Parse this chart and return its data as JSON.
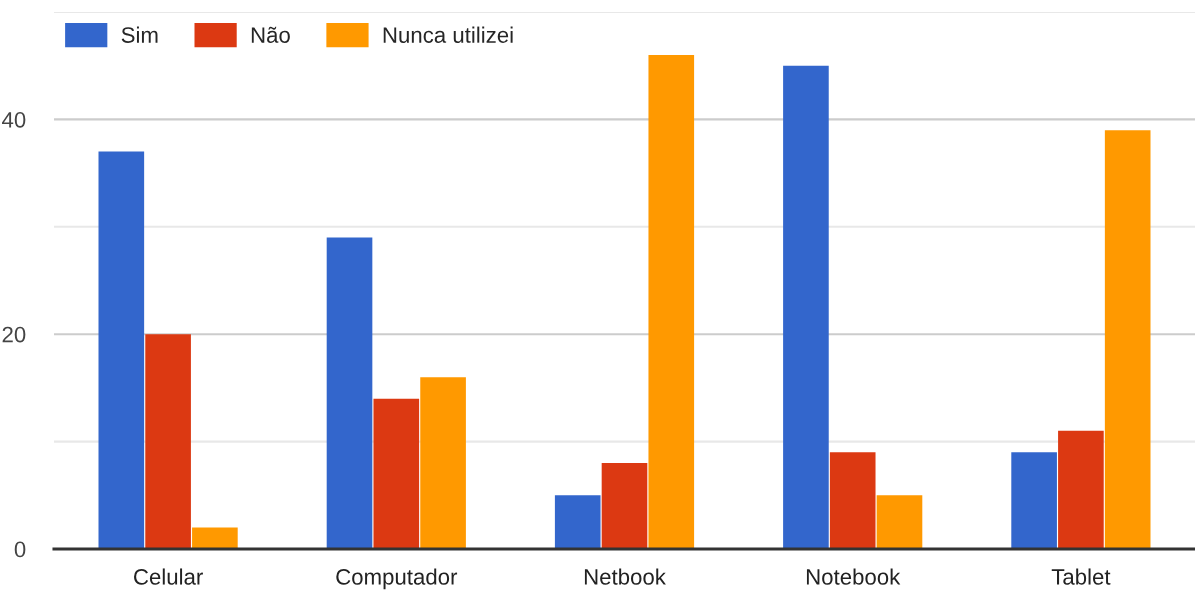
{
  "chart_data": {
    "type": "bar",
    "categories": [
      "Celular",
      "Computador",
      "Netbook",
      "Notebook",
      "Tablet"
    ],
    "series": [
      {
        "name": "Sim",
        "color": "#3366cc",
        "values": [
          37,
          29,
          5,
          45,
          9
        ]
      },
      {
        "name": "Não",
        "color": "#dc3912",
        "values": [
          20,
          14,
          8,
          9,
          11
        ]
      },
      {
        "name": "Nunca utilizei",
        "color": "#ff9900",
        "values": [
          2,
          16,
          46,
          5,
          39
        ]
      }
    ],
    "ylim": [
      0,
      50
    ],
    "yticks": [
      0,
      {
        "value": 10,
        "label": null
      },
      20,
      {
        "value": 30,
        "label": null
      },
      40,
      {
        "value": 50,
        "label": null
      }
    ],
    "grid": "y",
    "legend": "top left"
  }
}
